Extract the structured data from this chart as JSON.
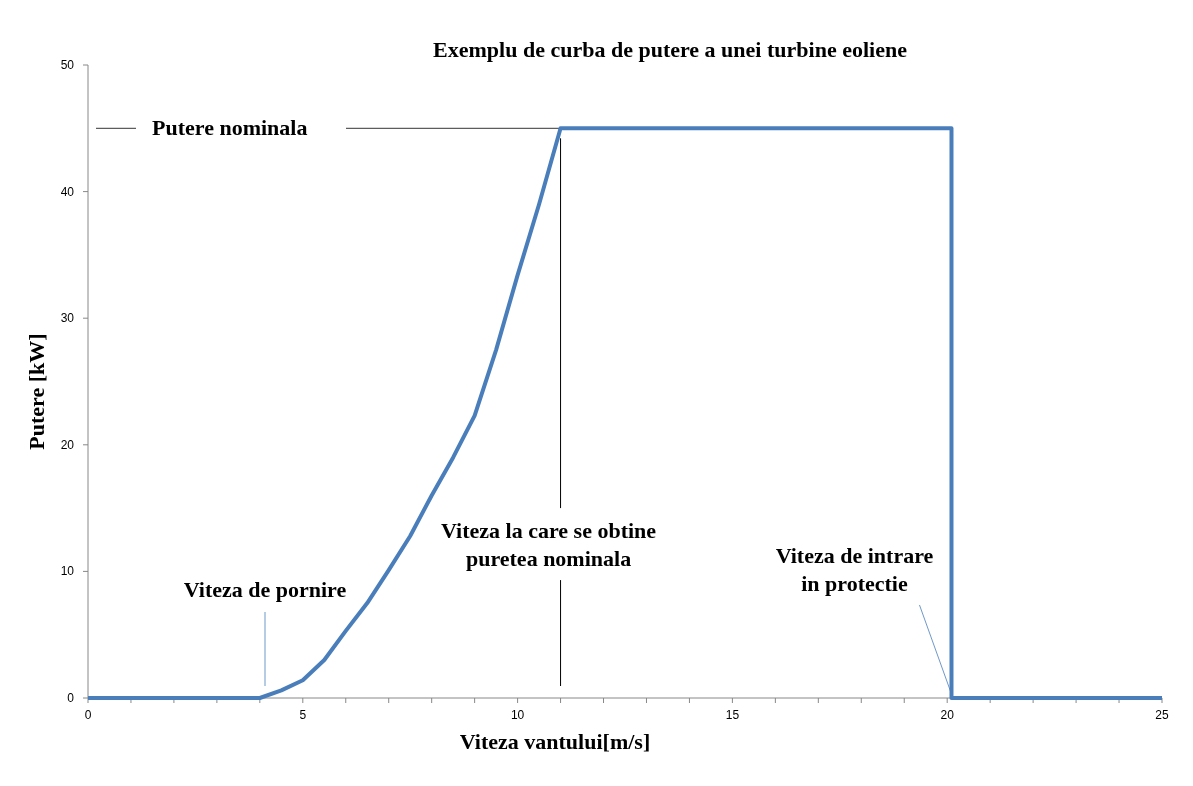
{
  "chart_data": {
    "type": "line",
    "title": "Exemplu de curba de putere a unei turbine eoliene",
    "xlabel": "Viteza vantului[m/s]",
    "ylabel": "Putere [kW]",
    "series": [
      {
        "color": "#4a7ebb",
        "x": [
          0,
          4,
          4.5,
          5,
          5.5,
          6,
          6.5,
          7,
          7.5,
          8,
          8.5,
          9,
          9.5,
          10,
          10.5,
          11,
          20.1,
          20.1,
          25
        ],
        "values": [
          0,
          0,
          0.6,
          1.4,
          3,
          5.3,
          7.5,
          10.1,
          12.8,
          16,
          19,
          22.3,
          27.5,
          33.4,
          39,
          45,
          45,
          0,
          0
        ]
      }
    ],
    "xlim": [
      0,
      25
    ],
    "ylim": [
      0,
      50
    ],
    "xticks": [
      0,
      {
        "value": 1,
        "label": null
      },
      {
        "value": 2,
        "label": null
      },
      {
        "value": 3,
        "label": null
      },
      {
        "value": 4,
        "label": null
      },
      5,
      {
        "value": 6,
        "label": null
      },
      {
        "value": 7,
        "label": null
      },
      {
        "value": 8,
        "label": null
      },
      {
        "value": 9,
        "label": null
      },
      10,
      {
        "value": 11,
        "label": null
      },
      {
        "value": 12,
        "label": null
      },
      {
        "value": 13,
        "label": null
      },
      {
        "value": 14,
        "label": null
      },
      15,
      {
        "value": 16,
        "label": null
      },
      {
        "value": 17,
        "label": null
      },
      {
        "value": 18,
        "label": null
      },
      {
        "value": 19,
        "label": null
      },
      20,
      {
        "value": 21,
        "label": null
      },
      {
        "value": 22,
        "label": null
      },
      {
        "value": 23,
        "label": null
      },
      {
        "value": 24,
        "label": null
      },
      25
    ],
    "yticks": [
      0,
      10,
      20,
      30,
      40,
      50
    ],
    "ref_lines": [
      {
        "axis": "y",
        "value": 45,
        "label": "Putere nominala",
        "color": "#000000"
      },
      {
        "axis": "x",
        "value": 11,
        "label": "Viteza la care se obtine\npuretea nominala",
        "color": "#000000"
      }
    ],
    "annotations": [
      "Viteza de pornire",
      {
        "text": "Viteza de intrare\nin protectie",
        "x": 20.1,
        "y": 0
      }
    ],
    "grid": false
  }
}
